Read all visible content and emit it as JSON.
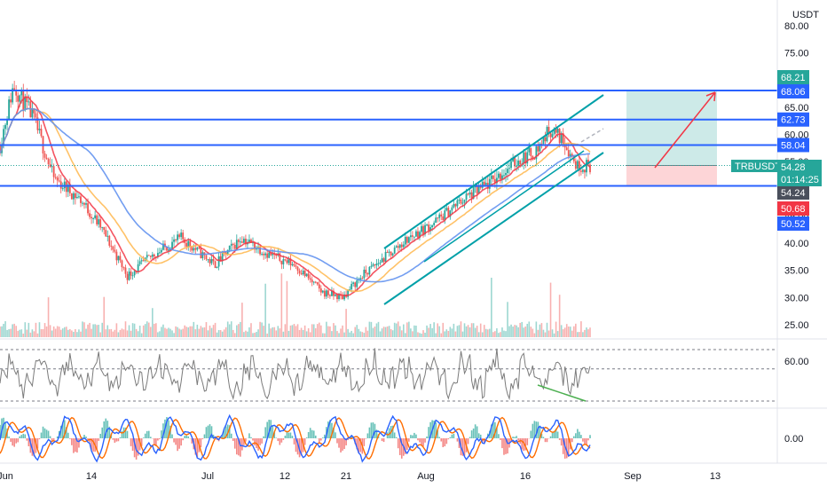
{
  "header": {
    "currency_label": "USDT"
  },
  "symbol": {
    "name": "TRBUSDT",
    "last_price": "54.28",
    "countdown": "01:14:25"
  },
  "price_axis": {
    "ticks": [
      "80.00",
      "75.00",
      "65.00",
      "60.00",
      "55.00",
      "45.00",
      "40.00",
      "35.00",
      "30.00",
      "25.00"
    ]
  },
  "time_axis": {
    "ticks": [
      "Jun",
      "14",
      "Jul",
      "12",
      "21",
      "Aug",
      "16",
      "Sep",
      "13"
    ]
  },
  "price_tags": [
    {
      "label": "68.21",
      "color": "#26a69a"
    },
    {
      "label": "68.06",
      "color": "#2962ff"
    },
    {
      "label": "62.73",
      "color": "#2962ff"
    },
    {
      "label": "58.04",
      "color": "#2962ff"
    },
    {
      "label": "54.24",
      "color": "#4a4f5c"
    },
    {
      "label": "50.68",
      "color": "#f23645"
    },
    {
      "label": "50.52",
      "color": "#2962ff"
    }
  ],
  "rsi_axis": {
    "ticks": [
      "60.00"
    ]
  },
  "macd_axis": {
    "ticks": [
      "0.00"
    ]
  },
  "colors": {
    "horizontal_level": "#2962ff",
    "channel": "#00a0a8",
    "ma_fast": "#f23645",
    "ma_mid": "#ffb74d",
    "ma_slow": "#5b8def",
    "up": "#26a69a",
    "down": "#ef5350",
    "target_zone": "#b2dfdb",
    "stop_zone": "#fccbcd",
    "arrow": "#f23645",
    "rsi_line": "#7b7b7b",
    "divergence": "#4caf50",
    "macd_line": "#2962ff",
    "signal_line": "#ff6d00"
  },
  "chart_data": [
    {
      "type": "candlestick",
      "symbol": "TRBUSDT",
      "ylim": [
        24,
        82
      ],
      "x_ticks": [
        "Jun",
        "14",
        "Jul",
        "12",
        "21",
        "Aug",
        "16",
        "Sep",
        "13"
      ],
      "y_ticks": [
        25,
        30,
        35,
        40,
        45,
        55,
        60,
        65,
        75,
        80
      ],
      "price_trajectory": [
        {
          "date": "Jun 1",
          "close": 58
        },
        {
          "date": "Jun 3",
          "close": 69
        },
        {
          "date": "Jun 6",
          "close": 63
        },
        {
          "date": "Jun 9",
          "close": 52
        },
        {
          "date": "Jun 13",
          "close": 48
        },
        {
          "date": "Jun 16",
          "close": 43
        },
        {
          "date": "Jun 20",
          "close": 34
        },
        {
          "date": "Jun 24",
          "close": 38
        },
        {
          "date": "Jun 28",
          "close": 41
        },
        {
          "date": "Jul 3",
          "close": 36
        },
        {
          "date": "Jul 7",
          "close": 41
        },
        {
          "date": "Jul 11",
          "close": 38
        },
        {
          "date": "Jul 15",
          "close": 36
        },
        {
          "date": "Jul 19",
          "close": 31
        },
        {
          "date": "Jul 22",
          "close": 30
        },
        {
          "date": "Jul 25",
          "close": 34
        },
        {
          "date": "Jul 28",
          "close": 37
        },
        {
          "date": "Aug 1",
          "close": 41
        },
        {
          "date": "Aug 5",
          "close": 44
        },
        {
          "date": "Aug 9",
          "close": 48
        },
        {
          "date": "Aug 13",
          "close": 51
        },
        {
          "date": "Aug 17",
          "close": 55
        },
        {
          "date": "Aug 20",
          "close": 57
        },
        {
          "date": "Aug 22",
          "close": 61
        },
        {
          "date": "Aug 24",
          "close": 59
        },
        {
          "date": "Aug 26",
          "close": 54.28
        }
      ],
      "horizontal_levels": [
        68.06,
        62.73,
        58.04,
        50.52
      ],
      "last_price": 54.28,
      "position": {
        "entry": 54.28,
        "target": 68.06,
        "stop": 50.52
      }
    },
    {
      "type": "line",
      "name": "",
      "y_ticks": [
        60
      ]
    },
    {
      "type": "bar",
      "name": "",
      "y_ticks": [
        0
      ]
    }
  ]
}
